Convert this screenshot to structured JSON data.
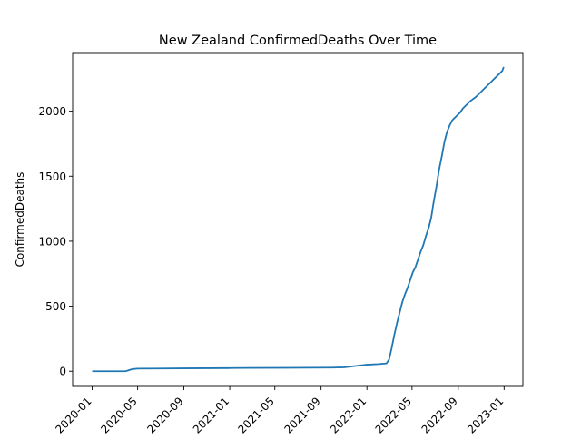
{
  "chart_data": {
    "type": "line",
    "title": "New Zealand  ConfirmedDeaths Over Time",
    "xlabel": "",
    "ylabel": "ConfirmedDeaths",
    "series_color": "#1f77b4",
    "xlim": [
      "2019-11-10",
      "2023-02-20"
    ],
    "ylim": [
      -117,
      2451
    ],
    "grid": false,
    "x_ticks": [
      {
        "date": "2020-01-01",
        "label": "2020-01"
      },
      {
        "date": "2020-05-01",
        "label": "2020-05"
      },
      {
        "date": "2020-09-01",
        "label": "2020-09"
      },
      {
        "date": "2021-01-01",
        "label": "2021-01"
      },
      {
        "date": "2021-05-01",
        "label": "2021-05"
      },
      {
        "date": "2021-09-01",
        "label": "2021-09"
      },
      {
        "date": "2022-01-01",
        "label": "2022-01"
      },
      {
        "date": "2022-05-01",
        "label": "2022-05"
      },
      {
        "date": "2022-09-01",
        "label": "2022-09"
      },
      {
        "date": "2023-01-01",
        "label": "2023-01"
      }
    ],
    "y_ticks": [
      {
        "value": 0,
        "label": "0"
      },
      {
        "value": 500,
        "label": "500"
      },
      {
        "value": 1000,
        "label": "1000"
      },
      {
        "value": 1500,
        "label": "1500"
      },
      {
        "value": 2000,
        "label": "2000"
      }
    ],
    "series": [
      {
        "x": [
          "2020-01-01",
          "2020-03-29",
          "2020-04-05",
          "2020-04-12",
          "2020-04-19",
          "2020-05-01",
          "2020-07-01",
          "2020-09-01",
          "2020-12-31",
          "2021-02-16",
          "2021-06-01",
          "2021-10-01",
          "2021-11-01",
          "2021-12-01",
          "2022-01-01",
          "2022-02-01",
          "2022-02-22",
          "2022-03-01",
          "2022-03-08",
          "2022-03-15",
          "2022-03-22",
          "2022-03-29",
          "2022-04-05",
          "2022-04-12",
          "2022-04-19",
          "2022-04-26",
          "2022-05-03",
          "2022-05-10",
          "2022-05-17",
          "2022-05-24",
          "2022-05-31",
          "2022-06-07",
          "2022-06-14",
          "2022-06-21",
          "2022-06-28",
          "2022-07-05",
          "2022-07-12",
          "2022-07-19",
          "2022-07-26",
          "2022-08-02",
          "2022-08-09",
          "2022-08-16",
          "2022-08-23",
          "2022-08-30",
          "2022-09-06",
          "2022-09-13",
          "2022-09-20",
          "2022-09-27",
          "2022-10-04",
          "2022-10-18",
          "2022-11-01",
          "2022-11-15",
          "2022-11-29",
          "2022-12-13",
          "2022-12-27",
          "2022-12-31"
        ],
        "y": [
          0,
          0,
          5,
          12,
          17,
          20,
          21,
          22,
          24,
          25,
          26,
          28,
          30,
          40,
          50,
          55,
          60,
          90,
          180,
          280,
          370,
          450,
          530,
          590,
          640,
          700,
          760,
          800,
          860,
          920,
          970,
          1040,
          1100,
          1180,
          1310,
          1420,
          1550,
          1650,
          1760,
          1840,
          1890,
          1930,
          1950,
          1970,
          1990,
          2020,
          2040,
          2060,
          2080,
          2110,
          2150,
          2190,
          2230,
          2270,
          2310,
          2340
        ]
      }
    ]
  }
}
